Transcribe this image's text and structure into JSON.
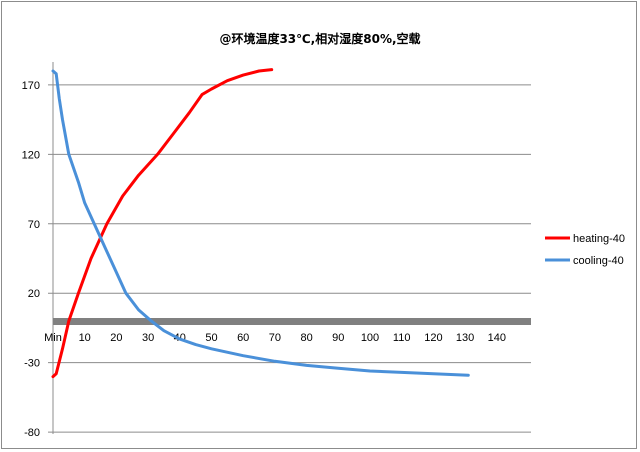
{
  "chart_data": {
    "type": "line",
    "title": "@环境温度33℃,相对湿度80%,空载",
    "xlabel": "",
    "ylabel": "",
    "x_tick_labels": [
      "Min",
      "10",
      "20",
      "30",
      "40",
      "50",
      "60",
      "70",
      "80",
      "90",
      "100",
      "110",
      "120",
      "130",
      "140"
    ],
    "y_tick_labels": [
      "170",
      "120",
      "70",
      "20",
      "-30",
      "-80"
    ],
    "xlim": [
      0,
      150
    ],
    "ylim": [
      -80,
      185
    ],
    "grid": "horizontal",
    "legend_position": "right",
    "series": [
      {
        "name": "heating-40",
        "color": "#ff0000",
        "x": [
          0,
          1,
          3,
          5,
          8,
          12,
          17,
          22,
          27,
          33,
          38,
          43,
          47,
          50,
          55,
          60,
          65,
          69
        ],
        "y": [
          -40,
          -38,
          -20,
          0,
          20,
          45,
          70,
          90,
          105,
          120,
          135,
          150,
          163,
          167,
          173,
          177,
          180,
          181
        ]
      },
      {
        "name": "cooling-40",
        "color": "#4a90d9",
        "x": [
          0,
          1,
          2,
          3,
          5,
          8,
          10,
          13,
          17,
          20,
          23,
          27,
          31,
          35,
          40,
          45,
          50,
          60,
          70,
          80,
          90,
          100,
          110,
          120,
          131
        ],
        "y": [
          180,
          178,
          160,
          145,
          120,
          100,
          85,
          70,
          50,
          35,
          20,
          8,
          0,
          -7,
          -13,
          -17,
          -20,
          -25,
          -29,
          -32,
          -34,
          -36,
          -37,
          -38,
          -39
        ]
      }
    ]
  },
  "legend": {
    "items": [
      {
        "label": "heating-40",
        "color": "#ff0000"
      },
      {
        "label": "cooling-40",
        "color": "#4a90d9"
      }
    ]
  }
}
